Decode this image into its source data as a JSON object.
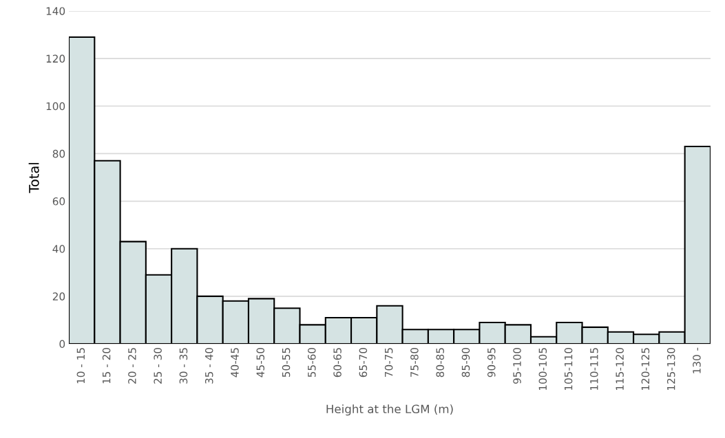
{
  "chart_data": {
    "type": "bar",
    "xlabel": "Height at the LGM (m)",
    "ylabel": "Total",
    "categories": [
      "10 - 15",
      "15 - 20",
      "20 - 25",
      "25 - 30",
      "30 - 35",
      "35 - 40",
      "40-45",
      "45-50",
      "50-55",
      "55-60",
      "60-65",
      "65-70",
      "70-75",
      "75-80",
      "80-85",
      "85-90",
      "90-95",
      "95-100",
      "100-105",
      "105-110",
      "110-115",
      "115-120",
      "120-125",
      "125-130",
      "130 -"
    ],
    "values": [
      129,
      77,
      43,
      29,
      40,
      20,
      18,
      19,
      15,
      8,
      11,
      11,
      16,
      6,
      6,
      6,
      9,
      8,
      3,
      9,
      7,
      5,
      4,
      5,
      83
    ],
    "color": "#d5e3e3",
    "ylim": [
      0,
      140
    ],
    "yticks": [
      0,
      20,
      40,
      60,
      80,
      100,
      120,
      140
    ],
    "grid": "y"
  }
}
